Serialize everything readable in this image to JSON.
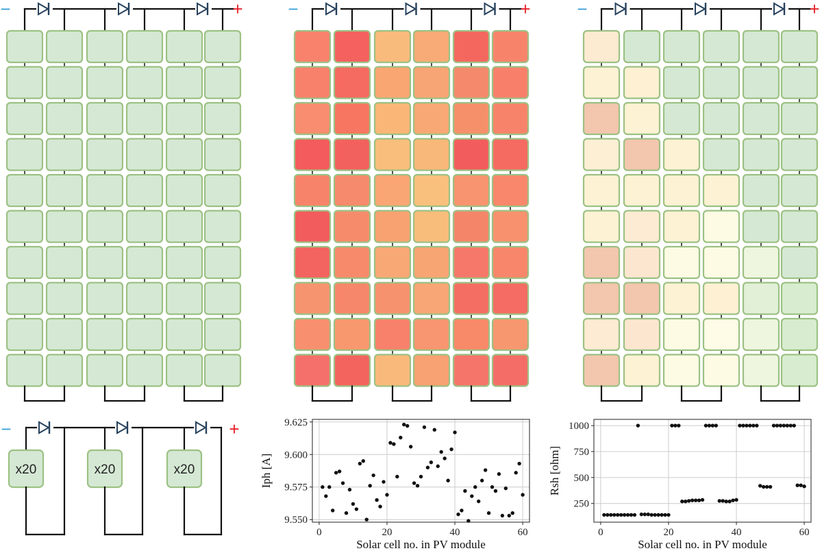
{
  "colors": {
    "cell_border": "#9cc183",
    "wire": "#111111",
    "minus_sign": "#3aa0d8",
    "plus_sign": "#e8232a",
    "baseline_fill": "#d5e8d4",
    "point": "#111111",
    "grid": "#cccccc"
  },
  "terminals": {
    "minus": "−",
    "plus": "+"
  },
  "bypass_diode_icon": "diode-icon",
  "modules": [
    {
      "id": "reference",
      "fills": [
        [
          "#d5e8d4",
          "#d5e8d4",
          "#d5e8d4",
          "#d5e8d4",
          "#d5e8d4",
          "#d5e8d4"
        ],
        [
          "#d5e8d4",
          "#d5e8d4",
          "#d5e8d4",
          "#d5e8d4",
          "#d5e8d4",
          "#d5e8d4"
        ],
        [
          "#d5e8d4",
          "#d5e8d4",
          "#d5e8d4",
          "#d5e8d4",
          "#d5e8d4",
          "#d5e8d4"
        ],
        [
          "#d5e8d4",
          "#d5e8d4",
          "#d5e8d4",
          "#d5e8d4",
          "#d5e8d4",
          "#d5e8d4"
        ],
        [
          "#d5e8d4",
          "#d5e8d4",
          "#d5e8d4",
          "#d5e8d4",
          "#d5e8d4",
          "#d5e8d4"
        ],
        [
          "#d5e8d4",
          "#d5e8d4",
          "#d5e8d4",
          "#d5e8d4",
          "#d5e8d4",
          "#d5e8d4"
        ],
        [
          "#d5e8d4",
          "#d5e8d4",
          "#d5e8d4",
          "#d5e8d4",
          "#d5e8d4",
          "#d5e8d4"
        ],
        [
          "#d5e8d4",
          "#d5e8d4",
          "#d5e8d4",
          "#d5e8d4",
          "#d5e8d4",
          "#d5e8d4"
        ],
        [
          "#d5e8d4",
          "#d5e8d4",
          "#d5e8d4",
          "#d5e8d4",
          "#d5e8d4",
          "#d5e8d4"
        ],
        [
          "#d5e8d4",
          "#d5e8d4",
          "#d5e8d4",
          "#d5e8d4",
          "#d5e8d4",
          "#d5e8d4"
        ]
      ]
    },
    {
      "id": "iph-map",
      "fills": [
        [
          "#f8826c",
          "#f4615e",
          "#f9bb7b",
          "#f8ab77",
          "#f4675f",
          "#f8836b"
        ],
        [
          "#f8816b",
          "#f56a61",
          "#f9a673",
          "#f8a575",
          "#f48a6b",
          "#f8806b"
        ],
        [
          "#f88d6f",
          "#f67662",
          "#f9b677",
          "#f8a874",
          "#f6906b",
          "#f7846a"
        ],
        [
          "#f35b5d",
          "#f3615e",
          "#f9be7c",
          "#f8b879",
          "#f35c5d",
          "#f56b61"
        ],
        [
          "#f7846a",
          "#f68a6c",
          "#f9a674",
          "#f9c07d",
          "#f8946f",
          "#f8876b"
        ],
        [
          "#f25c5d",
          "#f68b6b",
          "#f8a272",
          "#f9bd7b",
          "#f58569",
          "#f8926e"
        ],
        [
          "#f36360",
          "#f68a6b",
          "#f8a874",
          "#f8a574",
          "#f5786a",
          "#f7866a"
        ],
        [
          "#f79470",
          "#f6876a",
          "#f7926e",
          "#f8a675",
          "#f56e63",
          "#f46c63"
        ],
        [
          "#f88f6f",
          "#f8986f",
          "#f8816b",
          "#f79670",
          "#f88969",
          "#f79770"
        ],
        [
          "#f5706b",
          "#f4645f",
          "#f9b97a",
          "#f8a172",
          "#f6756a",
          "#f46e67"
        ]
      ]
    },
    {
      "id": "rsh-map",
      "fills": [
        [
          "#fdebd1",
          "#d5e8d4",
          "#d5e8d4",
          "#d5e8d4",
          "#d5e8d4",
          "#d5e8d4"
        ],
        [
          "#fdf2d4",
          "#fdf0d3",
          "#d5e8d4",
          "#d5e8d4",
          "#d5e8d4",
          "#d5e8d4"
        ],
        [
          "#f3c6ae",
          "#fdf2d4",
          "#d5e8d4",
          "#d5e8d4",
          "#d5e8d4",
          "#d5e8d4"
        ],
        [
          "#fdefd4",
          "#f3c6ae",
          "#fdf2d3",
          "#d5e8d4",
          "#d5e8d4",
          "#d5e8d4"
        ],
        [
          "#fdf2d4",
          "#fdf2d4",
          "#fdf2d3",
          "#fdf2d3",
          "#d5e8d4",
          "#d5e8d4"
        ],
        [
          "#fdf2d4",
          "#fdebd3",
          "#fdf2d4",
          "#fefbe4",
          "#d5e8d4",
          "#d5e8d4"
        ],
        [
          "#f3c6ae",
          "#fde6cf",
          "#fefbe5",
          "#fefbe4",
          "#eff6e0",
          "#d5e8d4"
        ],
        [
          "#f3c6ae",
          "#f3c6ae",
          "#fdf2d4",
          "#fdf0d3",
          "#e1f0d7",
          "#d8edcf"
        ],
        [
          "#fdebd3",
          "#fde6cf",
          "#fefbe5",
          "#fefbe6",
          "#eff6e0",
          "#d8edcf"
        ],
        [
          "#f3c6ae",
          "#fdf2d4",
          "#fefbe5",
          "#fefbe5",
          "#eff6e0",
          "#d8edcf"
        ]
      ]
    }
  ],
  "compact_module": {
    "labels": [
      "x20",
      "x20",
      "x20"
    ]
  },
  "chart_data": [
    {
      "type": "scatter",
      "xlabel": "Solar cell no. in PV module",
      "ylabel": "Iph [A]",
      "xlim": [
        -2,
        62
      ],
      "ylim": [
        9.548,
        9.627
      ],
      "xticks": [
        0,
        20,
        40,
        60
      ],
      "yticks": [
        9.55,
        9.575,
        9.6,
        9.625
      ],
      "xtick_labels": [
        "0",
        "20",
        "40",
        "60"
      ],
      "ytick_labels": [
        "9.550",
        "9.575",
        "9.600",
        "9.625"
      ],
      "grid": true,
      "x": [
        1,
        2,
        3,
        4,
        5,
        6,
        7,
        8,
        9,
        10,
        11,
        12,
        13,
        14,
        15,
        16,
        17,
        18,
        19,
        20,
        21,
        22,
        23,
        24,
        25,
        26,
        27,
        28,
        29,
        30,
        31,
        32,
        33,
        34,
        35,
        36,
        37,
        38,
        39,
        40,
        41,
        42,
        43,
        44,
        45,
        46,
        47,
        48,
        49,
        50,
        51,
        52,
        53,
        54,
        55,
        56,
        57,
        58,
        59,
        60
      ],
      "y": [
        9.575,
        9.568,
        9.575,
        9.557,
        9.586,
        9.587,
        9.578,
        9.555,
        9.573,
        9.562,
        9.558,
        9.593,
        9.595,
        9.55,
        9.576,
        9.584,
        9.565,
        9.56,
        9.579,
        9.569,
        9.609,
        9.608,
        9.583,
        9.613,
        9.623,
        9.622,
        9.606,
        9.578,
        9.576,
        9.583,
        9.621,
        9.59,
        9.594,
        9.619,
        9.591,
        9.602,
        9.597,
        9.58,
        9.604,
        9.617,
        9.554,
        9.557,
        9.572,
        9.549,
        9.568,
        9.575,
        9.564,
        9.58,
        9.588,
        9.555,
        9.575,
        9.572,
        9.585,
        9.553,
        9.574,
        9.553,
        9.555,
        9.586,
        9.593,
        9.569
      ]
    },
    {
      "type": "scatter",
      "xlabel": "Solar cell no. in PV module",
      "ylabel": "Rsh [ohm]",
      "xlim": [
        -2,
        62
      ],
      "ylim": [
        70,
        1060
      ],
      "xticks": [
        0,
        20,
        40,
        60
      ],
      "yticks": [
        250,
        500,
        750,
        1000
      ],
      "xtick_labels": [
        "0",
        "20",
        "40",
        "60"
      ],
      "ytick_labels": [
        "250",
        "500",
        "750",
        "1000"
      ],
      "grid": true,
      "x": [
        1,
        2,
        3,
        4,
        5,
        6,
        7,
        8,
        9,
        10,
        11,
        12,
        13,
        14,
        15,
        16,
        17,
        18,
        19,
        20,
        21,
        22,
        23,
        24,
        25,
        26,
        27,
        28,
        29,
        30,
        31,
        32,
        33,
        34,
        35,
        36,
        37,
        38,
        39,
        40,
        41,
        42,
        43,
        44,
        45,
        46,
        47,
        48,
        49,
        50,
        51,
        52,
        53,
        54,
        55,
        56,
        57,
        58,
        59,
        60
      ],
      "y": [
        140,
        140,
        140,
        140,
        140,
        140,
        140,
        140,
        140,
        140,
        1000,
        145,
        145,
        145,
        140,
        140,
        140,
        140,
        140,
        140,
        1000,
        1000,
        1000,
        270,
        270,
        275,
        280,
        280,
        280,
        285,
        1000,
        1000,
        1000,
        1000,
        275,
        275,
        270,
        270,
        280,
        285,
        1000,
        1000,
        1000,
        1000,
        1000,
        1000,
        420,
        410,
        410,
        410,
        1000,
        1000,
        1000,
        1000,
        1000,
        1000,
        1000,
        425,
        425,
        415
      ]
    }
  ]
}
